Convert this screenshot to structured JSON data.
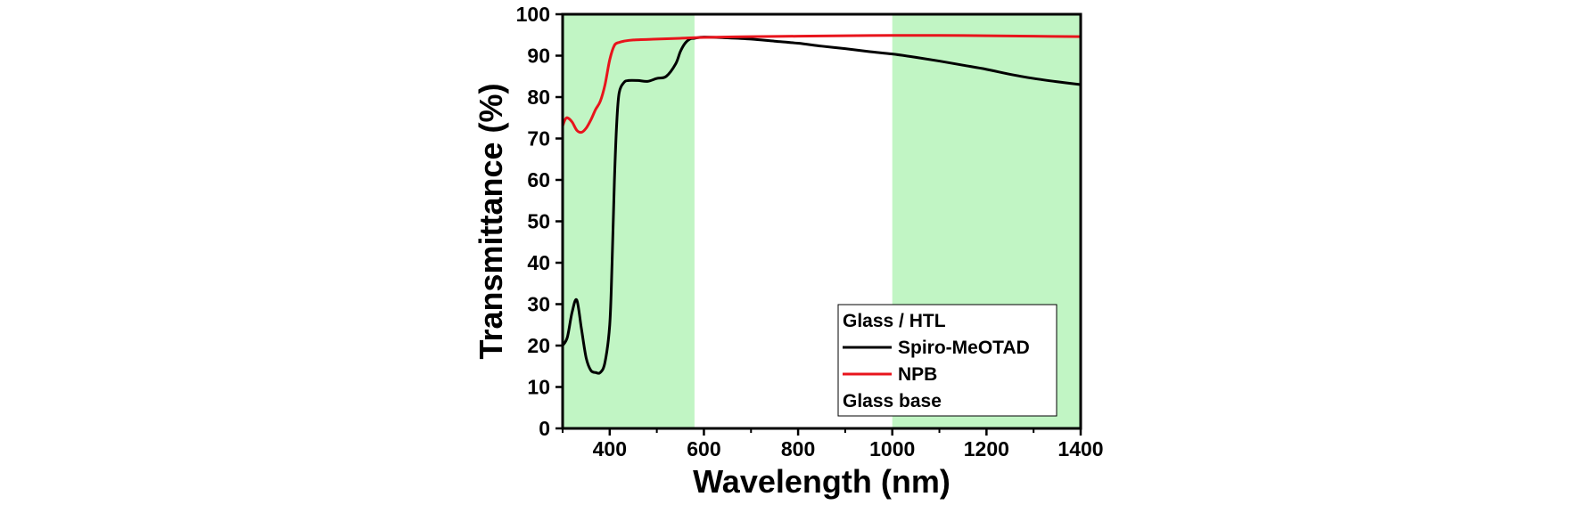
{
  "chart_data": {
    "type": "line",
    "xlabel": "Wavelength (nm)",
    "ylabel": "Transmittance (%)",
    "xlim": [
      300,
      1400
    ],
    "ylim": [
      0,
      100
    ],
    "xticks": [
      400,
      600,
      800,
      1000,
      1200,
      1400
    ],
    "yticks": [
      0,
      10,
      20,
      30,
      40,
      50,
      60,
      70,
      80,
      90,
      100
    ],
    "grid": false,
    "shaded_regions": [
      {
        "x": [
          300,
          580
        ],
        "color": "#c1f5c4"
      },
      {
        "x": [
          1000,
          1400
        ],
        "color": "#c1f5c4"
      }
    ],
    "legend": {
      "placement": "bottom-right",
      "title": "Glass / HTL",
      "footer": "Glass base"
    },
    "series": [
      {
        "name": "Spiro-MeOTAD",
        "color": "#000000",
        "x": [
          300,
          310,
          320,
          330,
          340,
          350,
          360,
          370,
          380,
          390,
          400,
          405,
          410,
          415,
          420,
          430,
          440,
          460,
          480,
          500,
          520,
          540,
          550,
          560,
          570,
          580,
          600,
          650,
          700,
          750,
          800,
          850,
          900,
          950,
          1000,
          1050,
          1100,
          1150,
          1200,
          1250,
          1300,
          1350,
          1400
        ],
        "y": [
          20,
          22,
          28,
          31,
          24,
          17,
          14,
          13.5,
          13.5,
          16,
          25,
          40,
          60,
          74,
          81,
          83.5,
          84,
          84,
          83.8,
          84.5,
          85,
          88,
          91,
          93,
          94,
          94.2,
          94.5,
          94.3,
          94,
          93.5,
          93,
          92.3,
          91.7,
          91,
          90.4,
          89.6,
          88.7,
          87.7,
          86.7,
          85.5,
          84.5,
          83.7,
          83
        ]
      },
      {
        "name": "NPB",
        "color": "#e8141c",
        "x": [
          300,
          305,
          310,
          320,
          330,
          340,
          350,
          360,
          370,
          380,
          390,
          400,
          410,
          420,
          430,
          450,
          500,
          550,
          600,
          700,
          800,
          900,
          1000,
          1100,
          1200,
          1300,
          1400
        ],
        "y": [
          73,
          74.5,
          75,
          74,
          72,
          71.5,
          72.5,
          74.5,
          77,
          79,
          83,
          89,
          92.5,
          93.2,
          93.5,
          93.8,
          94,
          94.2,
          94.4,
          94.6,
          94.7,
          94.8,
          94.9,
          94.9,
          94.8,
          94.7,
          94.6
        ]
      }
    ]
  }
}
